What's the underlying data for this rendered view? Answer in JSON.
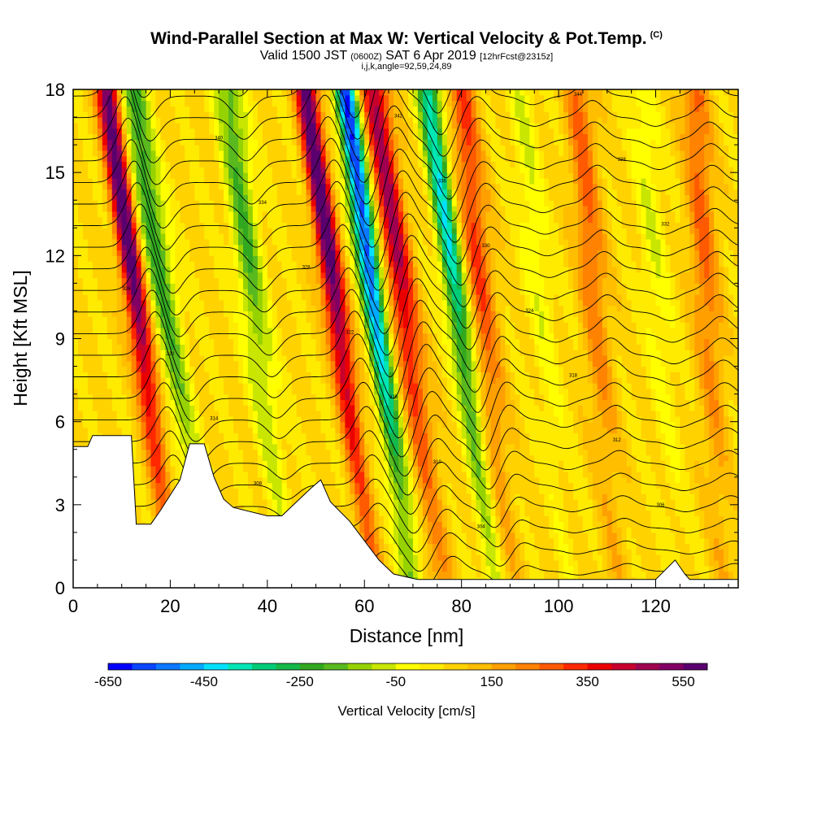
{
  "title": {
    "main": "Wind-Parallel Section at Max W: Vertical Velocity & Pot.Temp.",
    "copyright": "(C)",
    "valid_pre": "Valid 1500 JST",
    "valid_utc": "(0600Z)",
    "valid_post": "SAT 6 Apr 2019",
    "forecast": "[12hrFcst@2315z]",
    "params": "i,j,k,angle=92,59,24,89"
  },
  "chart_data": {
    "type": "heatmap",
    "xlabel": "Distance [nm]",
    "ylabel": "Height [Kft MSL]",
    "xlim": [
      0,
      137
    ],
    "ylim": [
      0,
      18
    ],
    "x_ticks": [
      0,
      20,
      40,
      60,
      80,
      100,
      120
    ],
    "y_ticks": [
      0,
      3,
      6,
      9,
      12,
      15,
      18
    ],
    "colorbar": {
      "label": "Vertical Velocity [cm/s]",
      "min": -650,
      "max": 600,
      "step": 50,
      "tick_labels": [
        -650,
        -450,
        -250,
        -50,
        150,
        350,
        550
      ],
      "colors": [
        "#0000ff",
        "#0a46ff",
        "#0a78ff",
        "#00aaff",
        "#00e1ff",
        "#00e6b4",
        "#00cc78",
        "#15b84a",
        "#32a820",
        "#5ab91e",
        "#96d200",
        "#c8e600",
        "#ffff00",
        "#ffeb00",
        "#ffd200",
        "#ffbe00",
        "#ffa000",
        "#ff8200",
        "#ff5a00",
        "#ff2800",
        "#eb0000",
        "#c8002d",
        "#a00050",
        "#820064",
        "#5a006e"
      ]
    },
    "velocity_columns": [
      {
        "x": 14,
        "peak_cm_s": 550,
        "lean": 7
      },
      {
        "x": 20,
        "peak_cm_s": -300,
        "lean": 8
      },
      {
        "x": 38,
        "peak_cm_s": -250,
        "lean": 6
      },
      {
        "x": 55,
        "peak_cm_s": 550,
        "lean": 7
      },
      {
        "x": 63,
        "peak_cm_s": -650,
        "lean": 7
      },
      {
        "x": 69,
        "peak_cm_s": 400,
        "lean": 7
      },
      {
        "x": 80,
        "peak_cm_s": -450,
        "lean": 7
      },
      {
        "x": 85,
        "peak_cm_s": 250,
        "lean": 5
      },
      {
        "x": 97,
        "peak_cm_s": -100,
        "lean": 5
      },
      {
        "x": 108,
        "peak_cm_s": 200,
        "lean": 4
      },
      {
        "x": 121,
        "peak_cm_s": -100,
        "lean": 4
      },
      {
        "x": 131,
        "peak_cm_s": 200,
        "lean": 3
      }
    ],
    "terrain": [
      [
        0,
        5.1
      ],
      [
        3,
        5.1
      ],
      [
        4,
        5.5
      ],
      [
        12,
        5.5
      ],
      [
        13,
        2.3
      ],
      [
        16,
        2.3
      ],
      [
        18,
        2.8
      ],
      [
        22,
        3.9
      ],
      [
        24,
        5.2
      ],
      [
        27,
        5.2
      ],
      [
        29,
        4.0
      ],
      [
        31,
        3.2
      ],
      [
        33,
        2.9
      ],
      [
        40,
        2.6
      ],
      [
        43,
        2.6
      ],
      [
        46,
        3.1
      ],
      [
        49,
        3.6
      ],
      [
        51,
        3.9
      ],
      [
        53,
        3.1
      ],
      [
        57,
        2.4
      ],
      [
        60,
        1.7
      ],
      [
        63,
        1.0
      ],
      [
        66,
        0.5
      ],
      [
        71,
        0.3
      ],
      [
        120,
        0.3
      ],
      [
        124,
        1.0
      ],
      [
        126,
        0.5
      ],
      [
        127,
        0.3
      ],
      [
        137,
        0.3
      ]
    ],
    "theta_contours": {
      "count": 24,
      "label_values": [
        "300",
        "302",
        "304",
        "306",
        "308",
        "310",
        "312",
        "314",
        "316",
        "318",
        "320",
        "322",
        "324",
        "326",
        "328",
        "330",
        "332",
        "334",
        "336",
        "338",
        "340",
        "342",
        "344",
        "346"
      ]
    }
  }
}
